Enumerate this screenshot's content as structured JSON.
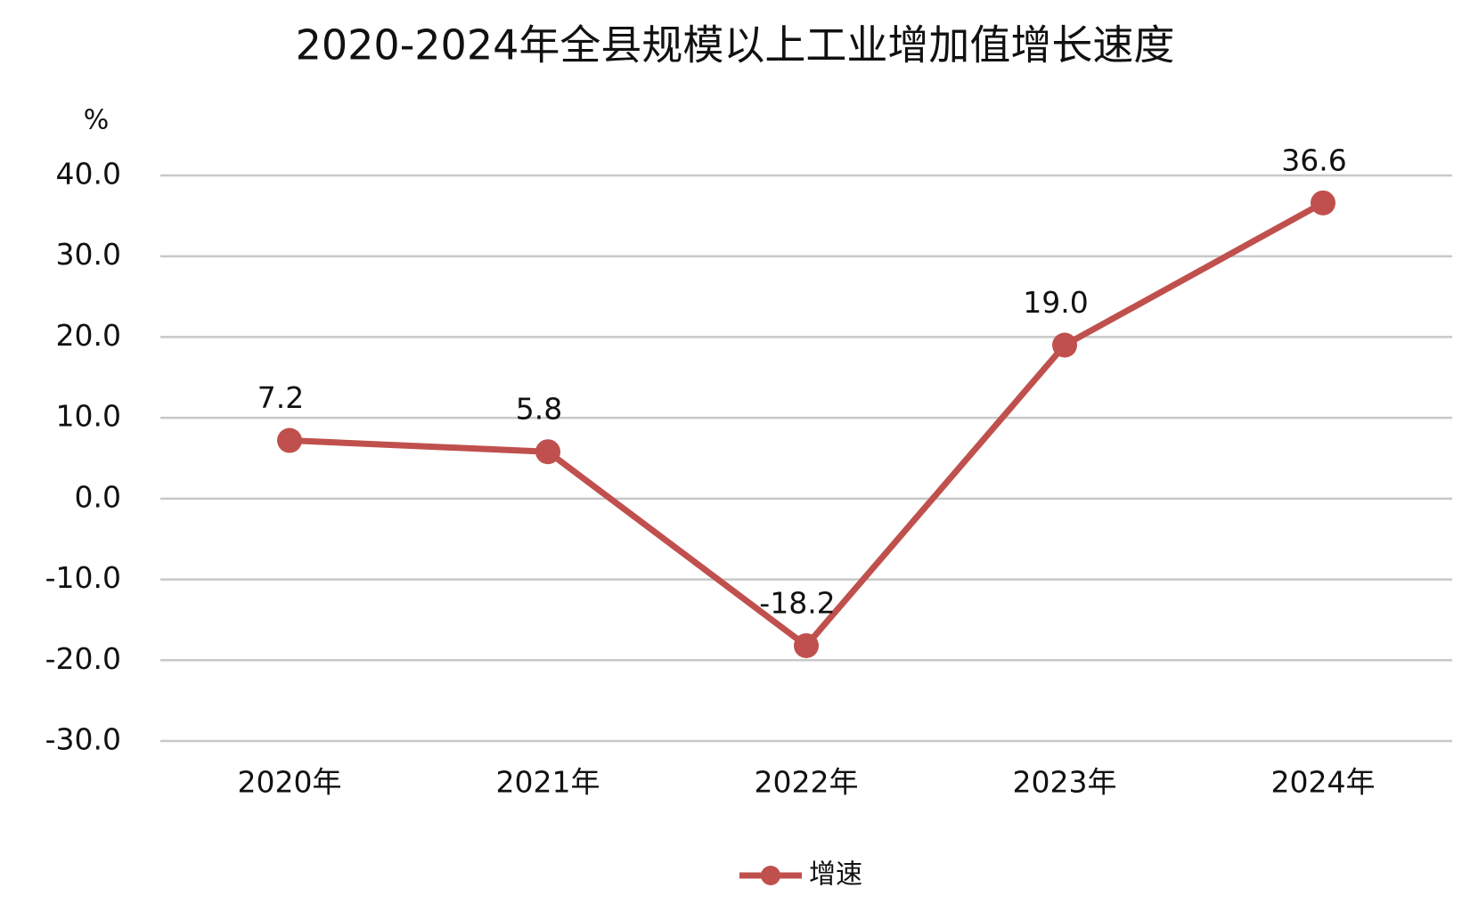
{
  "chart_data": {
    "type": "line",
    "title": "2020-2024年全县规模以上工业增加值增长速度",
    "y_unit": "%",
    "categories": [
      "2020年",
      "2021年",
      "2022年",
      "2023年",
      "2024年"
    ],
    "series": [
      {
        "name": "增速",
        "color": "#c0504d",
        "values": [
          7.2,
          5.8,
          -18.2,
          19.0,
          36.6
        ],
        "value_labels": [
          "7.2",
          "5.8",
          "-18.2",
          "19.0",
          "36.6"
        ]
      }
    ],
    "ylim": [
      -30,
      40
    ],
    "yticks": [
      {
        "value": -30,
        "label": "-30.0"
      },
      {
        "value": -20,
        "label": "-20.0"
      },
      {
        "value": -10,
        "label": "-10.0"
      },
      {
        "value": 0,
        "label": "0.0"
      },
      {
        "value": 10,
        "label": "10.0"
      },
      {
        "value": 20,
        "label": "20.0"
      },
      {
        "value": 30,
        "label": "30.0"
      },
      {
        "value": 40,
        "label": "40.0"
      }
    ],
    "grid": true,
    "legend": "bottom"
  }
}
